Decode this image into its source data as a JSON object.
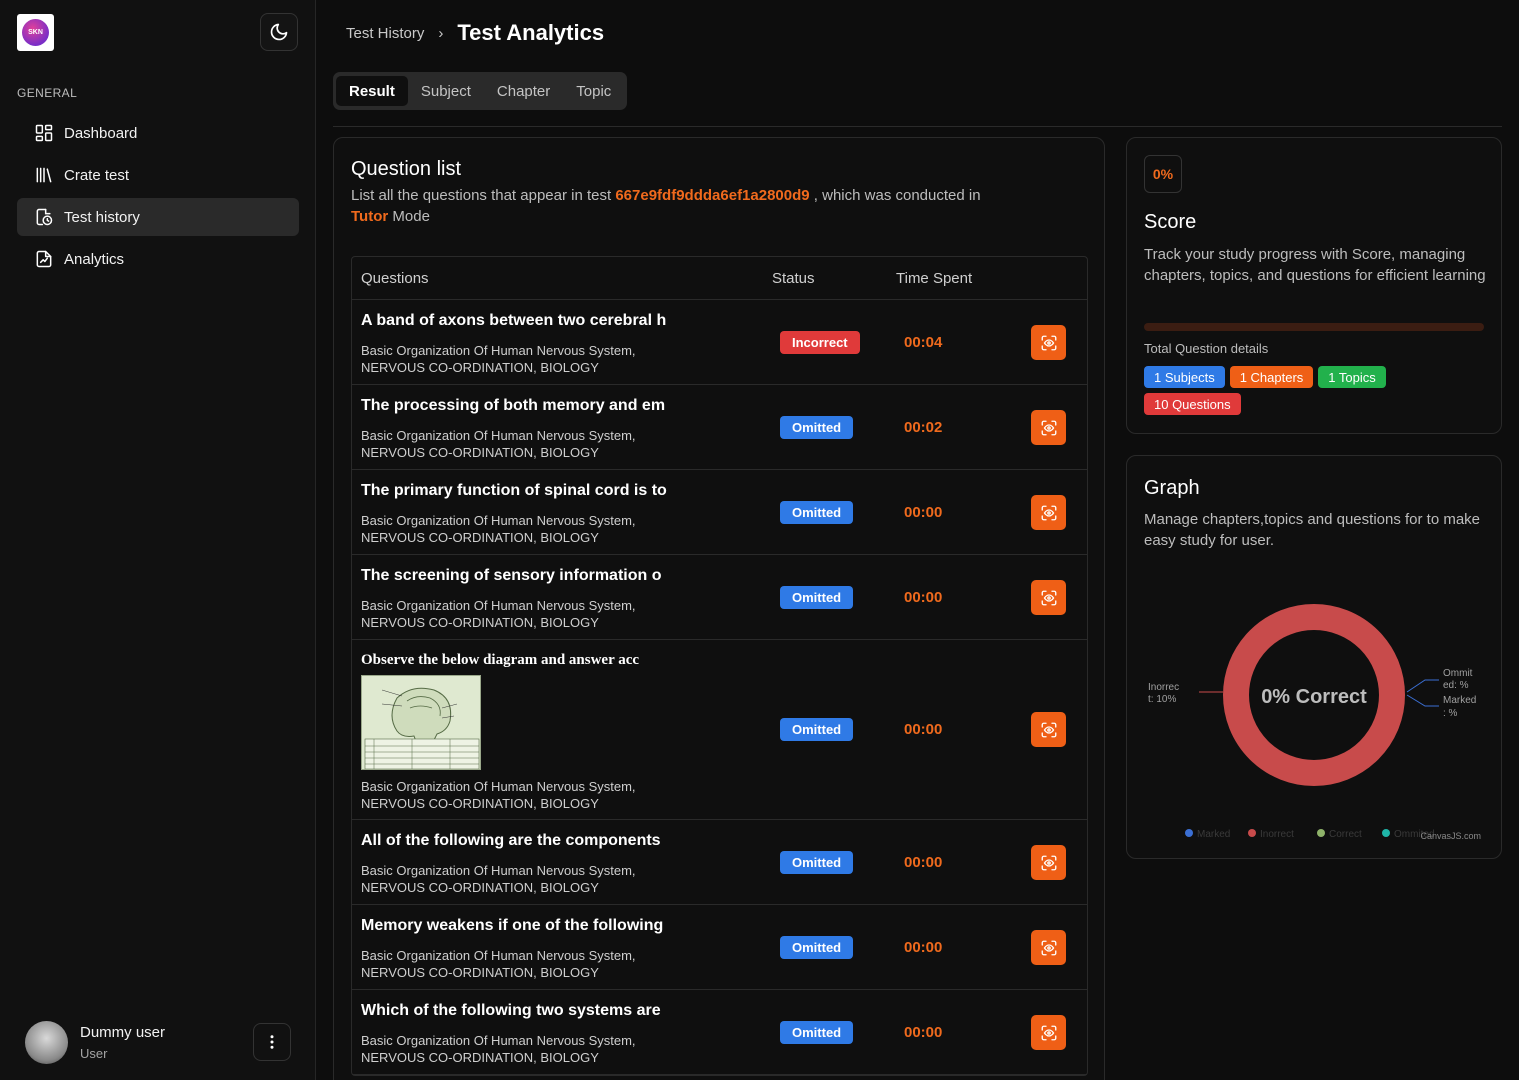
{
  "app": {
    "logo_text": "SKN"
  },
  "sidebar": {
    "section_label": "GENERAL",
    "items": [
      {
        "label": "Dashboard",
        "icon": "dashboard-icon",
        "active": false
      },
      {
        "label": "Crate test",
        "icon": "library-icon",
        "active": false
      },
      {
        "label": "Test history",
        "icon": "history-icon",
        "active": true
      },
      {
        "label": "Analytics",
        "icon": "analytics-icon",
        "active": false
      }
    ],
    "user": {
      "name": "Dummy user",
      "role": "User"
    }
  },
  "breadcrumb": {
    "previous": "Test History",
    "current": "Test Analytics"
  },
  "tabs": [
    "Result",
    "Subject",
    "Chapter",
    "Topic"
  ],
  "question_list": {
    "title": "Question list",
    "desc_prefix": "List all the questions that appear in test ",
    "test_id": "667e9fdf9ddda6ef1a2800d9",
    "desc_middle": " , which was conducted in",
    "mode": "Tutor",
    "desc_suffix": " Mode",
    "headers": {
      "questions": "Questions",
      "status": "Status",
      "time": "Time Spent"
    },
    "rows": [
      {
        "question": "A band of axons between two cerebral h",
        "meta1": "Basic Organization Of Human Nervous System,",
        "meta2": "NERVOUS CO-ORDINATION, BIOLOGY",
        "status": "Incorrect",
        "time": "00:04"
      },
      {
        "question": "The processing of both memory and em",
        "meta1": "Basic Organization Of Human Nervous System,",
        "meta2": "NERVOUS CO-ORDINATION, BIOLOGY",
        "status": "Omitted",
        "time": "00:02"
      },
      {
        "question": "The primary function of spinal cord is to",
        "meta1": "Basic Organization Of Human Nervous System,",
        "meta2": "NERVOUS CO-ORDINATION, BIOLOGY",
        "status": "Omitted",
        "time": "00:00"
      },
      {
        "question": "The screening of sensory information o",
        "meta1": "Basic Organization Of Human Nervous System,",
        "meta2": "NERVOUS CO-ORDINATION, BIOLOGY",
        "status": "Omitted",
        "time": "00:00"
      },
      {
        "question": "Observe the below diagram and answer acc",
        "meta1": "Basic Organization Of Human Nervous System,",
        "meta2": "NERVOUS CO-ORDINATION, BIOLOGY",
        "status": "Omitted",
        "time": "00:00",
        "has_image": true
      },
      {
        "question": "All of the following are the components",
        "meta1": "Basic Organization Of Human Nervous System,",
        "meta2": "NERVOUS CO-ORDINATION, BIOLOGY",
        "status": "Omitted",
        "time": "00:00"
      },
      {
        "question": "Memory weakens if one of the following",
        "meta1": "Basic Organization Of Human Nervous System,",
        "meta2": "NERVOUS CO-ORDINATION, BIOLOGY",
        "status": "Omitted",
        "time": "00:00"
      },
      {
        "question": "Which of the following two systems are",
        "meta1": "Basic Organization Of Human Nervous System,",
        "meta2": "NERVOUS CO-ORDINATION, BIOLOGY",
        "status": "Omitted",
        "time": "00:00"
      }
    ]
  },
  "score": {
    "percent": "0%",
    "progress": 0,
    "title": "Score",
    "description": "Track your study progress with Score, managing chapters, topics, and questions for efficient learning",
    "details_label": "Total Question details",
    "pills": [
      {
        "label": "1 Subjects",
        "color": "blue"
      },
      {
        "label": "1 Chapters",
        "color": "orange"
      },
      {
        "label": "1 Topics",
        "color": "green"
      },
      {
        "label": "10 Questions",
        "color": "red"
      }
    ]
  },
  "graph": {
    "title": "Graph",
    "description": "Manage chapters,topics and questions for to make easy study for user.",
    "center_label": "0% Correct",
    "left_label_1": "Inorrec",
    "left_label_2": "t: 10%",
    "right_label_1": "Ommit",
    "right_label_2": "ed: %",
    "right_label_3": "Marked",
    "right_label_4": ": %",
    "legend": [
      "Marked",
      "Inorrect",
      "Correct",
      "Ommited"
    ],
    "credit": "CanvasJS.com",
    "colors": {
      "Marked": "#3b6fd4",
      "Inorrect": "#c84b4b",
      "Correct": "#8fb36a",
      "Ommited": "#1fb5a8"
    }
  },
  "chart_data": {
    "type": "pie",
    "labels": [
      "Marked",
      "Inorrect",
      "Correct",
      "Ommited"
    ],
    "values": [
      0,
      10,
      0,
      0
    ]
  }
}
